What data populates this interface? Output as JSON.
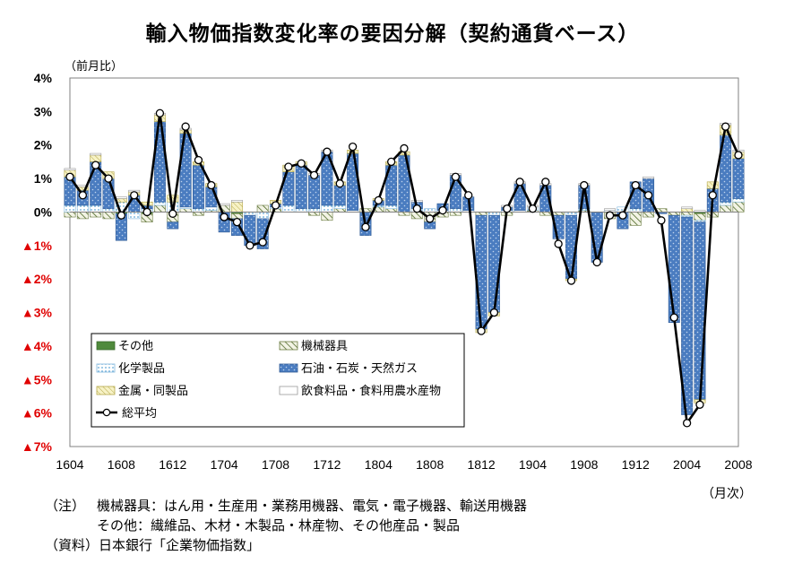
{
  "title": "輸入物価指数変化率の要因分解（契約通貨ベース）",
  "ylabel": "（前月比）",
  "xunit": "（月次）",
  "notes": {
    "note_label": "（注）",
    "note_line1": "機械器具：はん用・生産用・業務用機器、電気・電子機器、輸送用機器",
    "note_line2": "その他：繊維品、木材・木製品・林産物、その他産品・製品",
    "source": "（資料）日本銀行「企業物価指数」"
  },
  "colors": {
    "other": "#4f8a3c",
    "machinery": "#e8ecd0",
    "chemicals": "#dbeef7",
    "oil": "#4a7cc0",
    "metals": "#f0e9b0",
    "food": "#ffffff",
    "average_line": "#000000",
    "negative_tick": "#e00000"
  },
  "chart_data": {
    "type": "bar",
    "stacked": true,
    "title": "輸入物価指数変化率の要因分解（契約通貨ベース）",
    "ylabel": "（前月比）",
    "xlabel": "（月次）",
    "ylim": [
      -7,
      4
    ],
    "yticks": [
      {
        "value": 4,
        "label": "4%"
      },
      {
        "value": 3,
        "label": "3%"
      },
      {
        "value": 2,
        "label": "2%"
      },
      {
        "value": 1,
        "label": "1%"
      },
      {
        "value": 0,
        "label": "0%"
      },
      {
        "value": -1,
        "label": "▲1%"
      },
      {
        "value": -2,
        "label": "▲2%"
      },
      {
        "value": -3,
        "label": "▲3%"
      },
      {
        "value": -4,
        "label": "▲4%"
      },
      {
        "value": -5,
        "label": "▲5%"
      },
      {
        "value": -6,
        "label": "▲6%"
      },
      {
        "value": -7,
        "label": "▲7%"
      }
    ],
    "xtick_labels": [
      "1604",
      "1608",
      "1612",
      "1704",
      "1708",
      "1712",
      "1804",
      "1808",
      "1812",
      "1904",
      "1908",
      "1912",
      "2004",
      "2008"
    ],
    "x": [
      "1604",
      "1605",
      "1606",
      "1607",
      "1608",
      "1609",
      "1610",
      "1611",
      "1612",
      "1701",
      "1702",
      "1703",
      "1704",
      "1705",
      "1706",
      "1707",
      "1708",
      "1709",
      "1710",
      "1711",
      "1712",
      "1801",
      "1802",
      "1803",
      "1804",
      "1805",
      "1806",
      "1807",
      "1808",
      "1809",
      "1810",
      "1811",
      "1812",
      "1901",
      "1902",
      "1903",
      "1904",
      "1905",
      "1906",
      "1907",
      "1908",
      "1909",
      "1910",
      "1911",
      "1912",
      "2001",
      "2002",
      "2003",
      "2004",
      "2005",
      "2006",
      "2007",
      "2008"
    ],
    "legend_position": "bottom-left",
    "grid": false,
    "series": [
      {
        "name": "その他",
        "key": "other",
        "values": [
          0.0,
          0.0,
          0.0,
          0.0,
          -0.05,
          0.0,
          -0.05,
          0.0,
          0.0,
          0.0,
          0.0,
          0.0,
          0.0,
          -0.05,
          0.0,
          0.0,
          0.0,
          0.0,
          0.0,
          0.0,
          0.0,
          0.0,
          0.0,
          0.0,
          0.0,
          0.0,
          0.0,
          0.0,
          0.0,
          0.0,
          0.0,
          0.0,
          0.0,
          0.0,
          0.0,
          0.0,
          0.0,
          0.0,
          0.0,
          0.0,
          0.0,
          0.0,
          0.0,
          0.0,
          0.0,
          0.0,
          0.0,
          0.0,
          0.0,
          -0.05,
          0.0,
          0.0,
          0.0
        ]
      },
      {
        "name": "機械器具",
        "key": "machinery",
        "values": [
          -0.15,
          -0.2,
          -0.15,
          -0.2,
          0.0,
          0.0,
          -0.25,
          0.2,
          -0.3,
          0.1,
          -0.1,
          0.05,
          0.2,
          -0.15,
          0.0,
          0.2,
          0.1,
          0.0,
          0.0,
          -0.1,
          -0.25,
          0.1,
          0.0,
          0.1,
          0.15,
          0.1,
          -0.1,
          -0.2,
          -0.3,
          -0.15,
          -0.1,
          0.0,
          -0.1,
          0.0,
          -0.1,
          0.0,
          0.05,
          -0.1,
          -0.1,
          0.0,
          0.05,
          0.0,
          -0.2,
          0.0,
          -0.4,
          -0.15,
          0.1,
          -0.1,
          -0.1,
          -0.2,
          -0.15,
          0.2,
          0.3
        ]
      },
      {
        "name": "化学製品",
        "key": "chemicals",
        "values": [
          0.2,
          0.2,
          0.2,
          0.1,
          0.3,
          -0.2,
          0.1,
          0.1,
          0.3,
          0.05,
          0.1,
          0.1,
          0.0,
          0.0,
          -0.1,
          -0.2,
          0.05,
          0.2,
          0.1,
          0.1,
          0.2,
          0.1,
          0.05,
          0.0,
          0.05,
          0.1,
          0.0,
          0.1,
          0.1,
          0.05,
          0.1,
          0.05,
          0.0,
          -0.1,
          0.05,
          0.05,
          0.1,
          0.0,
          0.0,
          -0.1,
          0.05,
          0.0,
          0.05,
          0.15,
          0.1,
          0.0,
          0.0,
          0.0,
          -0.05,
          -0.05,
          0.0,
          0.1,
          0.1
        ]
      },
      {
        "name": "石油・石炭・天然ガス",
        "key": "oil",
        "values": [
          0.85,
          0.45,
          1.3,
          0.9,
          -0.8,
          0.5,
          0.1,
          2.4,
          -0.2,
          2.2,
          1.3,
          0.6,
          -0.6,
          -0.5,
          -0.9,
          -0.9,
          0.1,
          1.0,
          1.3,
          1.0,
          1.6,
          0.6,
          1.7,
          -0.7,
          0.15,
          1.2,
          1.7,
          0.2,
          -0.2,
          0.2,
          1.0,
          0.4,
          -3.4,
          -2.9,
          0.1,
          0.8,
          0.0,
          0.8,
          -0.7,
          -1.9,
          0.7,
          -1.5,
          0.0,
          -0.5,
          0.8,
          1.0,
          -0.05,
          -3.2,
          -5.9,
          -5.3,
          0.7,
          2.0,
          1.2
        ]
      },
      {
        "name": "金属・同製品",
        "key": "metals",
        "values": [
          0.2,
          0.1,
          0.2,
          0.2,
          0.1,
          0.1,
          0.1,
          0.2,
          0.2,
          0.1,
          0.1,
          0.1,
          0.0,
          0.3,
          0.0,
          0.0,
          0.1,
          0.2,
          0.1,
          0.0,
          0.0,
          0.1,
          0.1,
          0.0,
          0.05,
          0.1,
          0.1,
          0.0,
          0.0,
          0.0,
          0.0,
          0.0,
          -0.1,
          -0.1,
          0.0,
          0.0,
          0.0,
          0.0,
          0.0,
          -0.05,
          0.0,
          0.0,
          0.0,
          0.0,
          0.0,
          0.0,
          0.0,
          0.0,
          0.1,
          -0.1,
          0.2,
          0.3,
          0.2
        ]
      },
      {
        "name": "飲食料品・食料用農水産物",
        "key": "food",
        "values": [
          0.05,
          0.05,
          0.05,
          0.0,
          0.05,
          0.05,
          0.0,
          0.05,
          0.0,
          0.05,
          0.0,
          0.0,
          0.05,
          0.05,
          0.0,
          0.0,
          0.0,
          0.0,
          0.0,
          0.05,
          0.05,
          0.0,
          0.0,
          0.0,
          0.0,
          0.0,
          0.0,
          0.05,
          0.0,
          0.0,
          0.05,
          0.0,
          0.0,
          0.0,
          0.05,
          0.05,
          0.05,
          0.05,
          0.0,
          0.0,
          0.05,
          0.0,
          0.05,
          0.0,
          0.0,
          0.05,
          0.0,
          0.0,
          0.05,
          0.05,
          0.0,
          0.05,
          0.05
        ]
      }
    ],
    "line": {
      "name": "総平均",
      "key": "average",
      "values": [
        1.05,
        0.5,
        1.4,
        1.0,
        -0.1,
        0.5,
        0.0,
        2.95,
        -0.05,
        2.55,
        1.55,
        0.8,
        -0.15,
        -0.3,
        -1.0,
        -0.9,
        0.2,
        1.35,
        1.45,
        1.1,
        1.8,
        0.85,
        1.95,
        -0.45,
        0.35,
        1.5,
        1.9,
        0.1,
        -0.2,
        0.05,
        1.05,
        0.5,
        -3.55,
        -3.0,
        0.1,
        0.9,
        0.1,
        0.9,
        -0.95,
        -2.05,
        0.8,
        -1.5,
        -0.1,
        -0.1,
        0.8,
        0.5,
        -0.25,
        -3.15,
        -6.3,
        -5.75,
        0.5,
        2.55,
        1.7
      ]
    }
  }
}
